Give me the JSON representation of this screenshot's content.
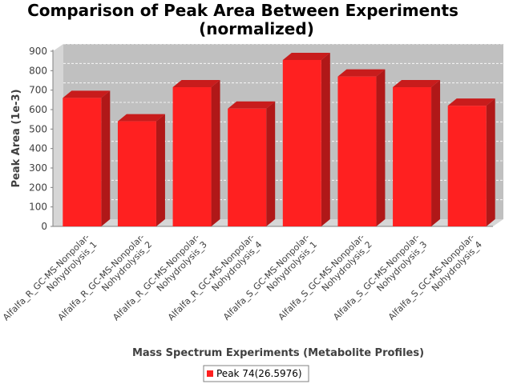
{
  "chart_data": {
    "type": "bar",
    "title_lines": [
      "Comparison of Peak Area Between Experiments",
      "(normalized)"
    ],
    "xlabel": "Mass Spectrum Experiments (Metabolite Profiles)",
    "ylabel": "Peak Area (1e-3)",
    "ylim": [
      0,
      900
    ],
    "yticks": [
      "0",
      "100",
      "200",
      "300",
      "400",
      "500",
      "600",
      "700",
      "800",
      "900"
    ],
    "categories": [
      [
        "Alfalfa_R_GC-MS-Nonpolar-",
        "Nohydrolysis_1"
      ],
      [
        "Alfalfa_R_GC-MS-Nonpolar-",
        "Nohydrolysis_2"
      ],
      [
        "Alfalfa_R_GC-MS-Nonpolar-",
        "Nohydrolysis_3"
      ],
      [
        "Alfalfa_R_GC-MS-Nonpolar-",
        "Nohydrolysis_4"
      ],
      [
        "Alfalfa_S_GC-MS-Nonpolar-",
        "Nohydrolysis_1"
      ],
      [
        "Alfalfa_S_GC-MS-Nonpolar-",
        "Nohydrolysis_2"
      ],
      [
        "Alfalfa_S_GC-MS-Nonpolar-",
        "Nohydrolysis_3"
      ],
      [
        "Alfalfa_S_GC-MS-Nonpolar-",
        "Nohydrolysis_4"
      ]
    ],
    "series": [
      {
        "name": "Peak 74(26.5976)",
        "color": "#ff2020",
        "values": [
          660,
          540,
          715,
          605,
          855,
          770,
          715,
          620
        ]
      }
    ],
    "grid": true,
    "legend": "bottom-center",
    "colors": {
      "plot_background": "#c0c0c0",
      "gridline": "#ffffff",
      "bar_front": "#ff2020",
      "bar_side": "#b01818"
    }
  }
}
